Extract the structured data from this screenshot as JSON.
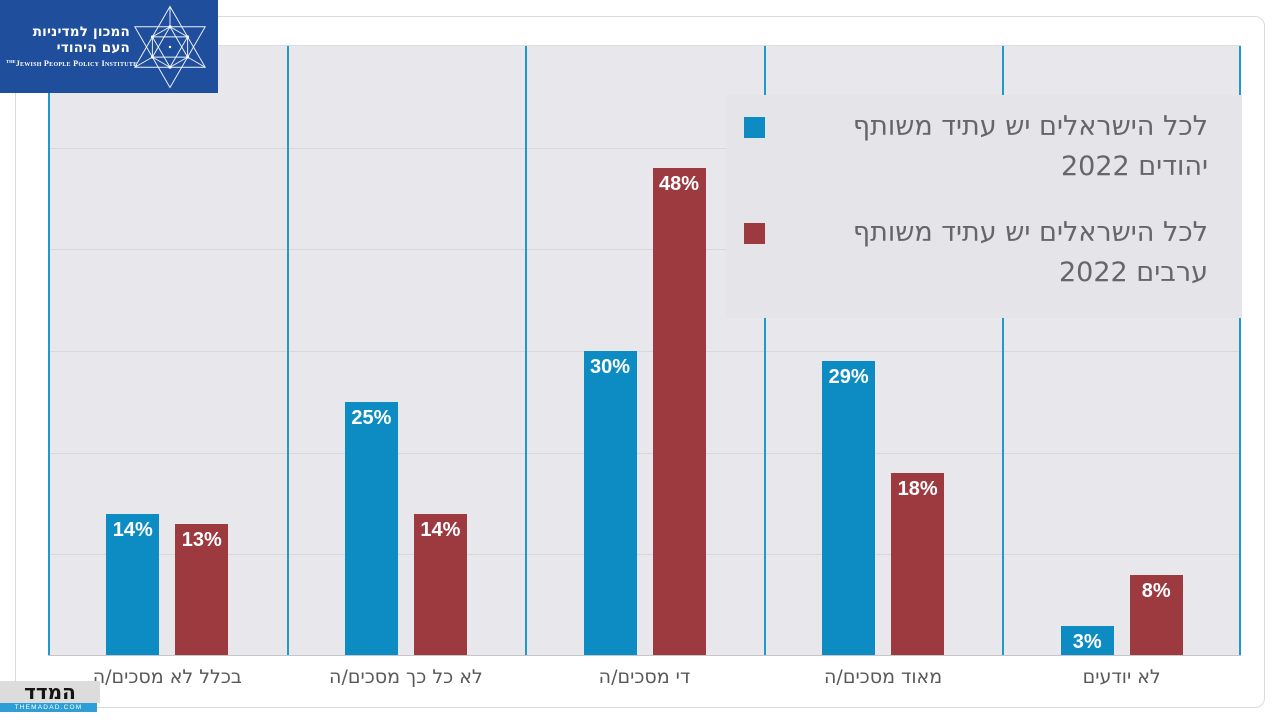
{
  "header": {
    "jppi_logo": {
      "hebrew_name": "המכון למדיניות העם היהודי",
      "english_name_prefix": "THE",
      "english_name": "Jewish People Policy Institute"
    }
  },
  "footer_logo": {
    "title": "המדד",
    "site": "THEMADAD.COM"
  },
  "chart_data": {
    "type": "bar",
    "title": "",
    "xlabel": "",
    "ylabel": "",
    "categories": [
      "בכלל לא מסכים/ה",
      "לא כל כך מסכים/ה",
      "די מסכים/ה",
      "מאוד מסכים/ה",
      "לא יודעים"
    ],
    "series": [
      {
        "name": "לכל הישראלים יש עתיד משותף יהודים 2022",
        "legend_line1": "לכל הישראלים יש עתיד משותף",
        "legend_line2": "יהודים 2022",
        "color": "#0d8cc3",
        "values": [
          14,
          25,
          30,
          29,
          3
        ]
      },
      {
        "name": "לכל הישראלים יש עתיד משותף ערבים 2022",
        "legend_line1": "לכל הישראלים יש עתיד משותף",
        "legend_line2": "ערבים 2022",
        "color": "#9c3a40",
        "values": [
          13,
          14,
          48,
          18,
          8
        ]
      }
    ],
    "value_suffix": "%",
    "data_labels": [
      "14%",
      "13%",
      "25%",
      "14%",
      "30%",
      "48%",
      "29%",
      "18%",
      "3%",
      "8%"
    ],
    "ylim": [
      0,
      60
    ],
    "grid_step": 10,
    "grid": true,
    "legend_position": "top-right",
    "plot_background": "#e8e8ec",
    "separator_color": "#2199c8"
  }
}
